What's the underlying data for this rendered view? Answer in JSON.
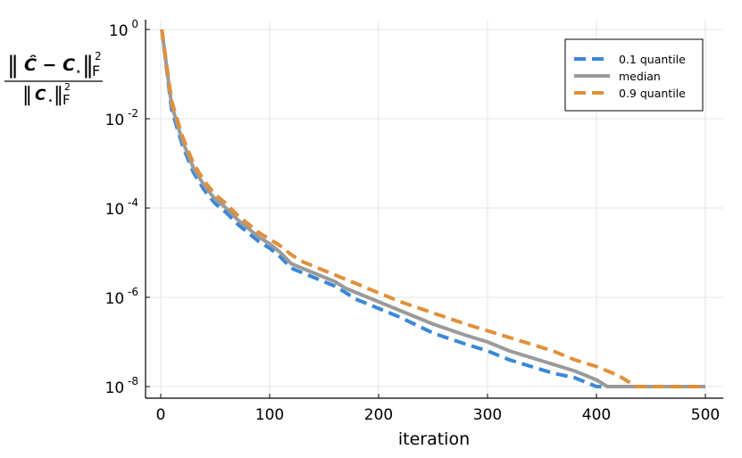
{
  "chart_data": {
    "type": "line",
    "xlabel": "iteration",
    "ylabel": "‖Ĉ − C⋆‖²F / ‖C⋆‖²F",
    "ylabel_parts": {
      "num_main": "Ĉ − C",
      "num_sub": "⋆",
      "den_main": "C",
      "den_sub": "⋆",
      "norm_sup": "2",
      "norm_sub": "F"
    },
    "xlim": [
      -12,
      510
    ],
    "ylim": [
      1e-08,
      1
    ],
    "yscale": "log",
    "grid": true,
    "legend_position": "top-right",
    "x_ticks": [
      "0",
      "100",
      "200",
      "300",
      "400",
      "500"
    ],
    "y_ticks": [
      {
        "base": "10",
        "exp": "0"
      },
      {
        "base": "10",
        "exp": "-2"
      },
      {
        "base": "10",
        "exp": "-4"
      },
      {
        "base": "10",
        "exp": "-6"
      },
      {
        "base": "10",
        "exp": "-8"
      }
    ],
    "series": [
      {
        "name": "0.1 quantile",
        "color": "#3a87d6",
        "dash": true,
        "x": [
          1,
          10,
          20,
          30,
          40,
          50,
          60,
          70,
          80,
          90,
          100,
          110,
          120,
          130,
          140,
          150,
          160,
          170,
          180,
          190,
          200,
          220,
          250,
          280,
          300,
          320,
          340,
          360,
          380,
          390,
          400,
          410,
          420,
          450,
          500
        ],
        "y": [
          1,
          0.0159,
          0.00251,
          0.000631,
          0.000251,
          0.000126,
          7.94e-05,
          4.47e-05,
          2.82e-05,
          1.78e-05,
          1.26e-05,
          7.94e-06,
          4.47e-06,
          3.55e-06,
          2.82e-06,
          2.24e-06,
          1.78e-06,
          1.26e-06,
          8.91e-07,
          7.08e-07,
          5.62e-07,
          3.55e-07,
          1.58e-07,
          8.91e-08,
          6.31e-08,
          3.98e-08,
          2.82e-08,
          2e-08,
          1.58e-08,
          1.26e-08,
          1e-08,
          1e-08,
          1e-08,
          1e-08,
          1e-08
        ]
      },
      {
        "name": "median",
        "color": "#9a9a9a",
        "dash": false,
        "x": [
          1,
          10,
          20,
          30,
          40,
          50,
          60,
          70,
          80,
          90,
          100,
          110,
          120,
          130,
          140,
          150,
          160,
          170,
          180,
          190,
          200,
          220,
          250,
          280,
          300,
          320,
          340,
          360,
          380,
          400,
          410,
          420,
          450,
          500
        ],
        "y": [
          1,
          0.02,
          0.00316,
          0.000794,
          0.000316,
          0.000158,
          0.0001,
          5.62e-05,
          3.55e-05,
          2.24e-05,
          1.58e-05,
          1e-05,
          5.62e-06,
          4.47e-06,
          3.55e-06,
          2.82e-06,
          2.24e-06,
          1.58e-06,
          1.26e-06,
          1e-06,
          7.94e-07,
          5.01e-07,
          2.51e-07,
          1.41e-07,
          1e-07,
          6.31e-08,
          4.47e-08,
          3.16e-08,
          2.24e-08,
          1.41e-08,
          1e-08,
          1e-08,
          1e-08,
          1e-08
        ]
      },
      {
        "name": "0.9 quantile",
        "color": "#e0903a",
        "dash": true,
        "x": [
          1,
          10,
          20,
          30,
          40,
          50,
          60,
          70,
          80,
          90,
          100,
          110,
          120,
          130,
          140,
          150,
          160,
          170,
          180,
          190,
          200,
          220,
          250,
          280,
          300,
          320,
          340,
          360,
          380,
          400,
          420,
          430,
          435,
          450,
          500
        ],
        "y": [
          1,
          0.0251,
          0.00398,
          0.001,
          0.000398,
          0.0002,
          0.000126,
          7.08e-05,
          4.47e-05,
          2.82e-05,
          2e-05,
          1.41e-05,
          8.91e-06,
          6.31e-06,
          5.01e-06,
          3.98e-06,
          3.16e-06,
          2.51e-06,
          2e-06,
          1.58e-06,
          1.26e-06,
          7.94e-07,
          4.47e-07,
          2.51e-07,
          1.78e-07,
          1.26e-07,
          8.91e-08,
          6.31e-08,
          3.98e-08,
          2.82e-08,
          1.78e-08,
          1.26e-08,
          1e-08,
          1e-08,
          1e-08
        ]
      }
    ]
  }
}
